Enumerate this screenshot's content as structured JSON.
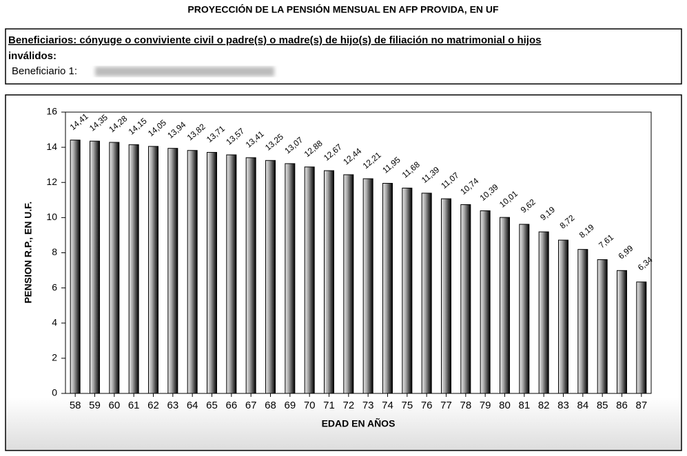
{
  "header": {
    "beneficiaries": "Beneficiarios: cónyuge o conviviente civil o padre(s) o madre(s) de hijo(s) de filiación no matrimonial o hijos",
    "beneficiaries_cont": "inválidos:",
    "beneficiary": "Beneficiario 1:"
  },
  "chart_data": {
    "type": "bar",
    "title": "PROYECCIÓN DE LA PENSIÓN MENSUAL EN AFP PROVIDA, EN UF",
    "x_label": "EDAD EN AÑOS",
    "y_label": "PENSION R.P., EN U.F.",
    "categories": [
      "58",
      "59",
      "60",
      "61",
      "62",
      "63",
      "64",
      "65",
      "66",
      "67",
      "68",
      "69",
      "70",
      "71",
      "72",
      "73",
      "74",
      "75",
      "76",
      "77",
      "78",
      "79",
      "80",
      "81",
      "82",
      "83",
      "84",
      "85",
      "86",
      "87"
    ],
    "values": [
      14.41,
      14.35,
      14.28,
      14.15,
      14.05,
      13.94,
      13.82,
      13.71,
      13.57,
      13.41,
      13.25,
      13.07,
      12.88,
      12.67,
      12.44,
      12.21,
      11.95,
      11.68,
      11.39,
      11.07,
      10.74,
      10.39,
      10.01,
      9.62,
      9.19,
      8.72,
      8.19,
      7.61,
      6.99,
      6.34
    ],
    "value_labels": [
      "14,41",
      "14,35",
      "14,28",
      "14,15",
      "14,05",
      "13,94",
      "13,82",
      "13,71",
      "13,57",
      "13,41",
      "13,25",
      "13,07",
      "12,88",
      "12,67",
      "12,44",
      "12,21",
      "11,95",
      "11,68",
      "11,39",
      "11,07",
      "10,74",
      "10,39",
      "10,01",
      "9,62",
      "9,19",
      "8,72",
      "8,19",
      "7,61",
      "6,99",
      "6,34"
    ],
    "color": "#000000",
    "ylim": [
      0,
      16
    ],
    "yticks": [
      0,
      2,
      4,
      6,
      8,
      10,
      12,
      14,
      16
    ]
  }
}
